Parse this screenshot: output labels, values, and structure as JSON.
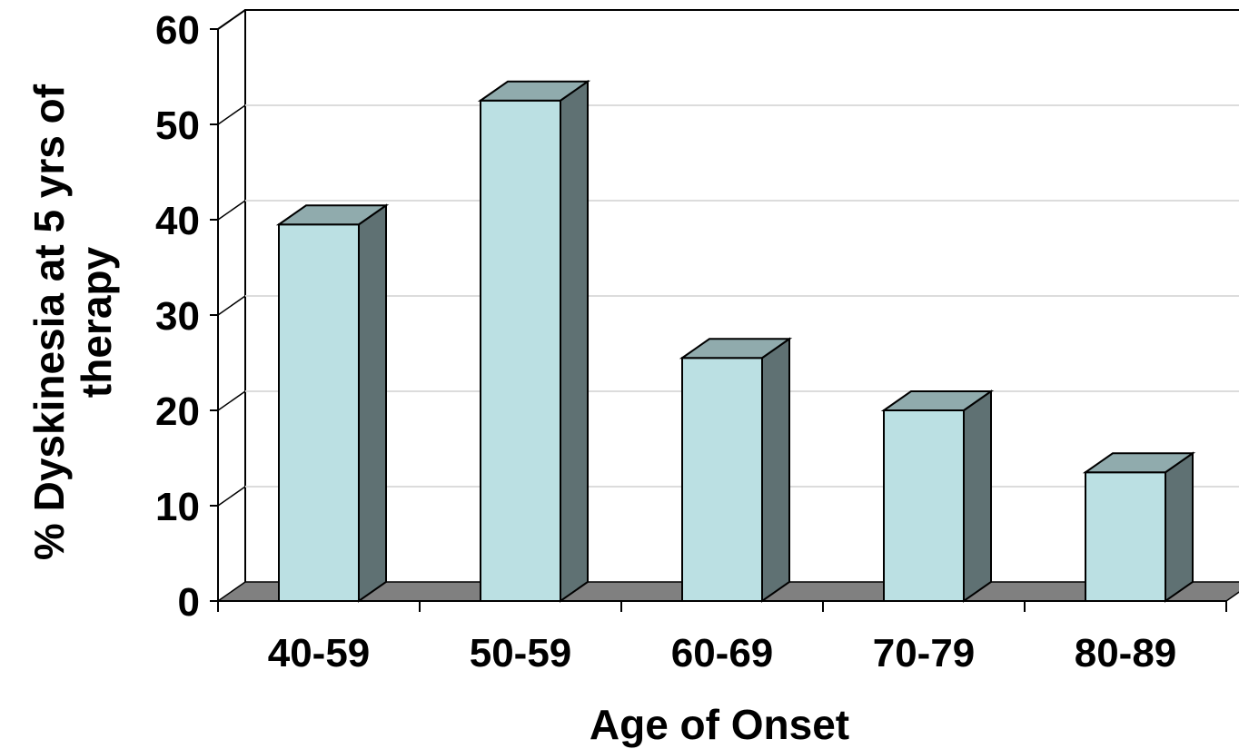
{
  "chart_data": {
    "type": "bar",
    "three_d": true,
    "categories": [
      "40-59",
      "50-59",
      "60-69",
      "70-79",
      "80-89"
    ],
    "values": [
      39.5,
      52.5,
      25.5,
      20,
      13.5
    ],
    "xlabel": "Age of Onset",
    "ylabel": "% Dyskinesia at 5 yrs of therapy",
    "ylabel_lines": [
      "% Dyskinesia at 5 yrs of",
      "therapy"
    ],
    "ylim": [
      0,
      60
    ],
    "yticks": [
      "0",
      "10",
      "20",
      "30",
      "40",
      "50",
      "60"
    ],
    "grid": true,
    "legend": "none",
    "colors": {
      "bar_front": "#bbe0e3",
      "bar_top": "#90abad",
      "bar_side": "#5f7173",
      "floor": "#808080",
      "gridline": "#dcdcdc",
      "outline": "#000000"
    }
  }
}
